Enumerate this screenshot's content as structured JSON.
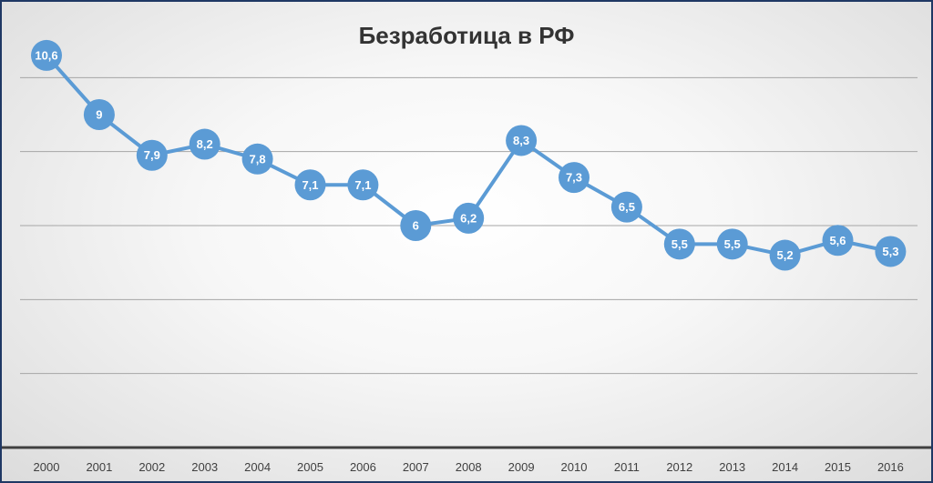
{
  "chart_data": {
    "type": "line",
    "title": "Безработица в РФ",
    "categories": [
      "2000",
      "2001",
      "2002",
      "2003",
      "2004",
      "2005",
      "2006",
      "2007",
      "2008",
      "2009",
      "2010",
      "2011",
      "2012",
      "2013",
      "2014",
      "2015",
      "2016"
    ],
    "series": [
      {
        "values": [
          10.6,
          9,
          7.9,
          8.2,
          7.8,
          7.1,
          7.1,
          6,
          6.2,
          8.3,
          7.3,
          6.5,
          5.5,
          5.5,
          5.2,
          5.6,
          5.3
        ]
      }
    ],
    "data_labels": [
      "10,6",
      "9",
      "7,9",
      "8,2",
      "7,8",
      "7,1",
      "7,1",
      "6",
      "6,2",
      "8,3",
      "7,3",
      "6,5",
      "5,5",
      "5,5",
      "5,2",
      "5,6",
      "5,3"
    ],
    "ylim": [
      0,
      12
    ],
    "y_gridline_step": 2,
    "y_tick_labels_shown": false,
    "grid": true,
    "legend": "none",
    "colors": {
      "line": "#5b9bd5",
      "marker": "#5b9bd5",
      "data_label": "#ffffff",
      "gridline": "#a6a6a6",
      "axis": "#404040",
      "frame_border": "#1f3864"
    }
  }
}
